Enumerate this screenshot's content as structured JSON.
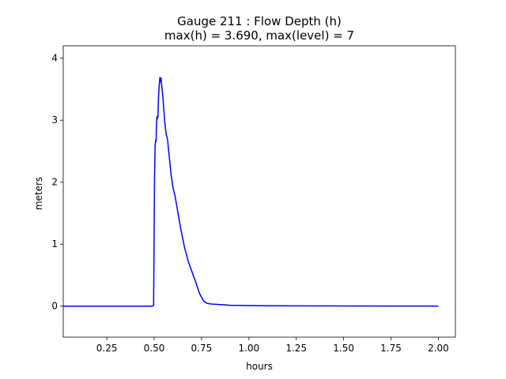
{
  "chart_data": {
    "type": "line",
    "title_line1": "Gauge 211 : Flow Depth (h)",
    "title_line2": "max(h) =   3.690,    max(level) = 7",
    "xlabel": "hours",
    "ylabel": "meters",
    "xlim": [
      0.02,
      2.09
    ],
    "ylim": [
      -0.5,
      4.2
    ],
    "x_ticks": [
      0.25,
      0.5,
      0.75,
      1.0,
      1.25,
      1.5,
      1.75,
      2.0
    ],
    "x_tick_labels": [
      "0.25",
      "0.50",
      "0.75",
      "1.00",
      "1.25",
      "1.50",
      "1.75",
      "2.00"
    ],
    "y_ticks": [
      0,
      1,
      2,
      3,
      4
    ],
    "y_tick_labels": [
      "0",
      "1",
      "2",
      "3",
      "4"
    ],
    "grid": false,
    "series": [
      {
        "color": "#0000ff",
        "x": [
          0.02,
          0.1,
          0.2,
          0.3,
          0.4,
          0.49,
          0.497,
          0.5,
          0.502,
          0.505,
          0.508,
          0.51,
          0.512,
          0.514,
          0.516,
          0.518,
          0.52,
          0.522,
          0.525,
          0.528,
          0.53,
          0.533,
          0.536,
          0.54,
          0.545,
          0.55,
          0.555,
          0.56,
          0.565,
          0.57,
          0.58,
          0.59,
          0.6,
          0.61,
          0.62,
          0.64,
          0.66,
          0.68,
          0.7,
          0.72,
          0.74,
          0.76,
          0.77,
          0.78,
          0.79,
          0.8,
          0.85,
          0.9,
          1.0,
          1.1,
          1.25,
          1.5,
          1.75,
          2.0
        ],
        "y": [
          0.0,
          0.0,
          0.0,
          0.0,
          0.0,
          0.0,
          0.01,
          1.3,
          2.1,
          2.6,
          2.68,
          2.66,
          2.9,
          3.05,
          3.02,
          3.06,
          3.05,
          3.3,
          3.5,
          3.6,
          3.69,
          3.62,
          3.68,
          3.55,
          3.4,
          3.2,
          3.0,
          2.85,
          2.75,
          2.7,
          2.4,
          2.1,
          1.9,
          1.78,
          1.6,
          1.25,
          0.95,
          0.72,
          0.55,
          0.38,
          0.2,
          0.09,
          0.06,
          0.045,
          0.04,
          0.035,
          0.025,
          0.015,
          0.01,
          0.007,
          0.005,
          0.003,
          0.002,
          0.002
        ]
      }
    ]
  }
}
